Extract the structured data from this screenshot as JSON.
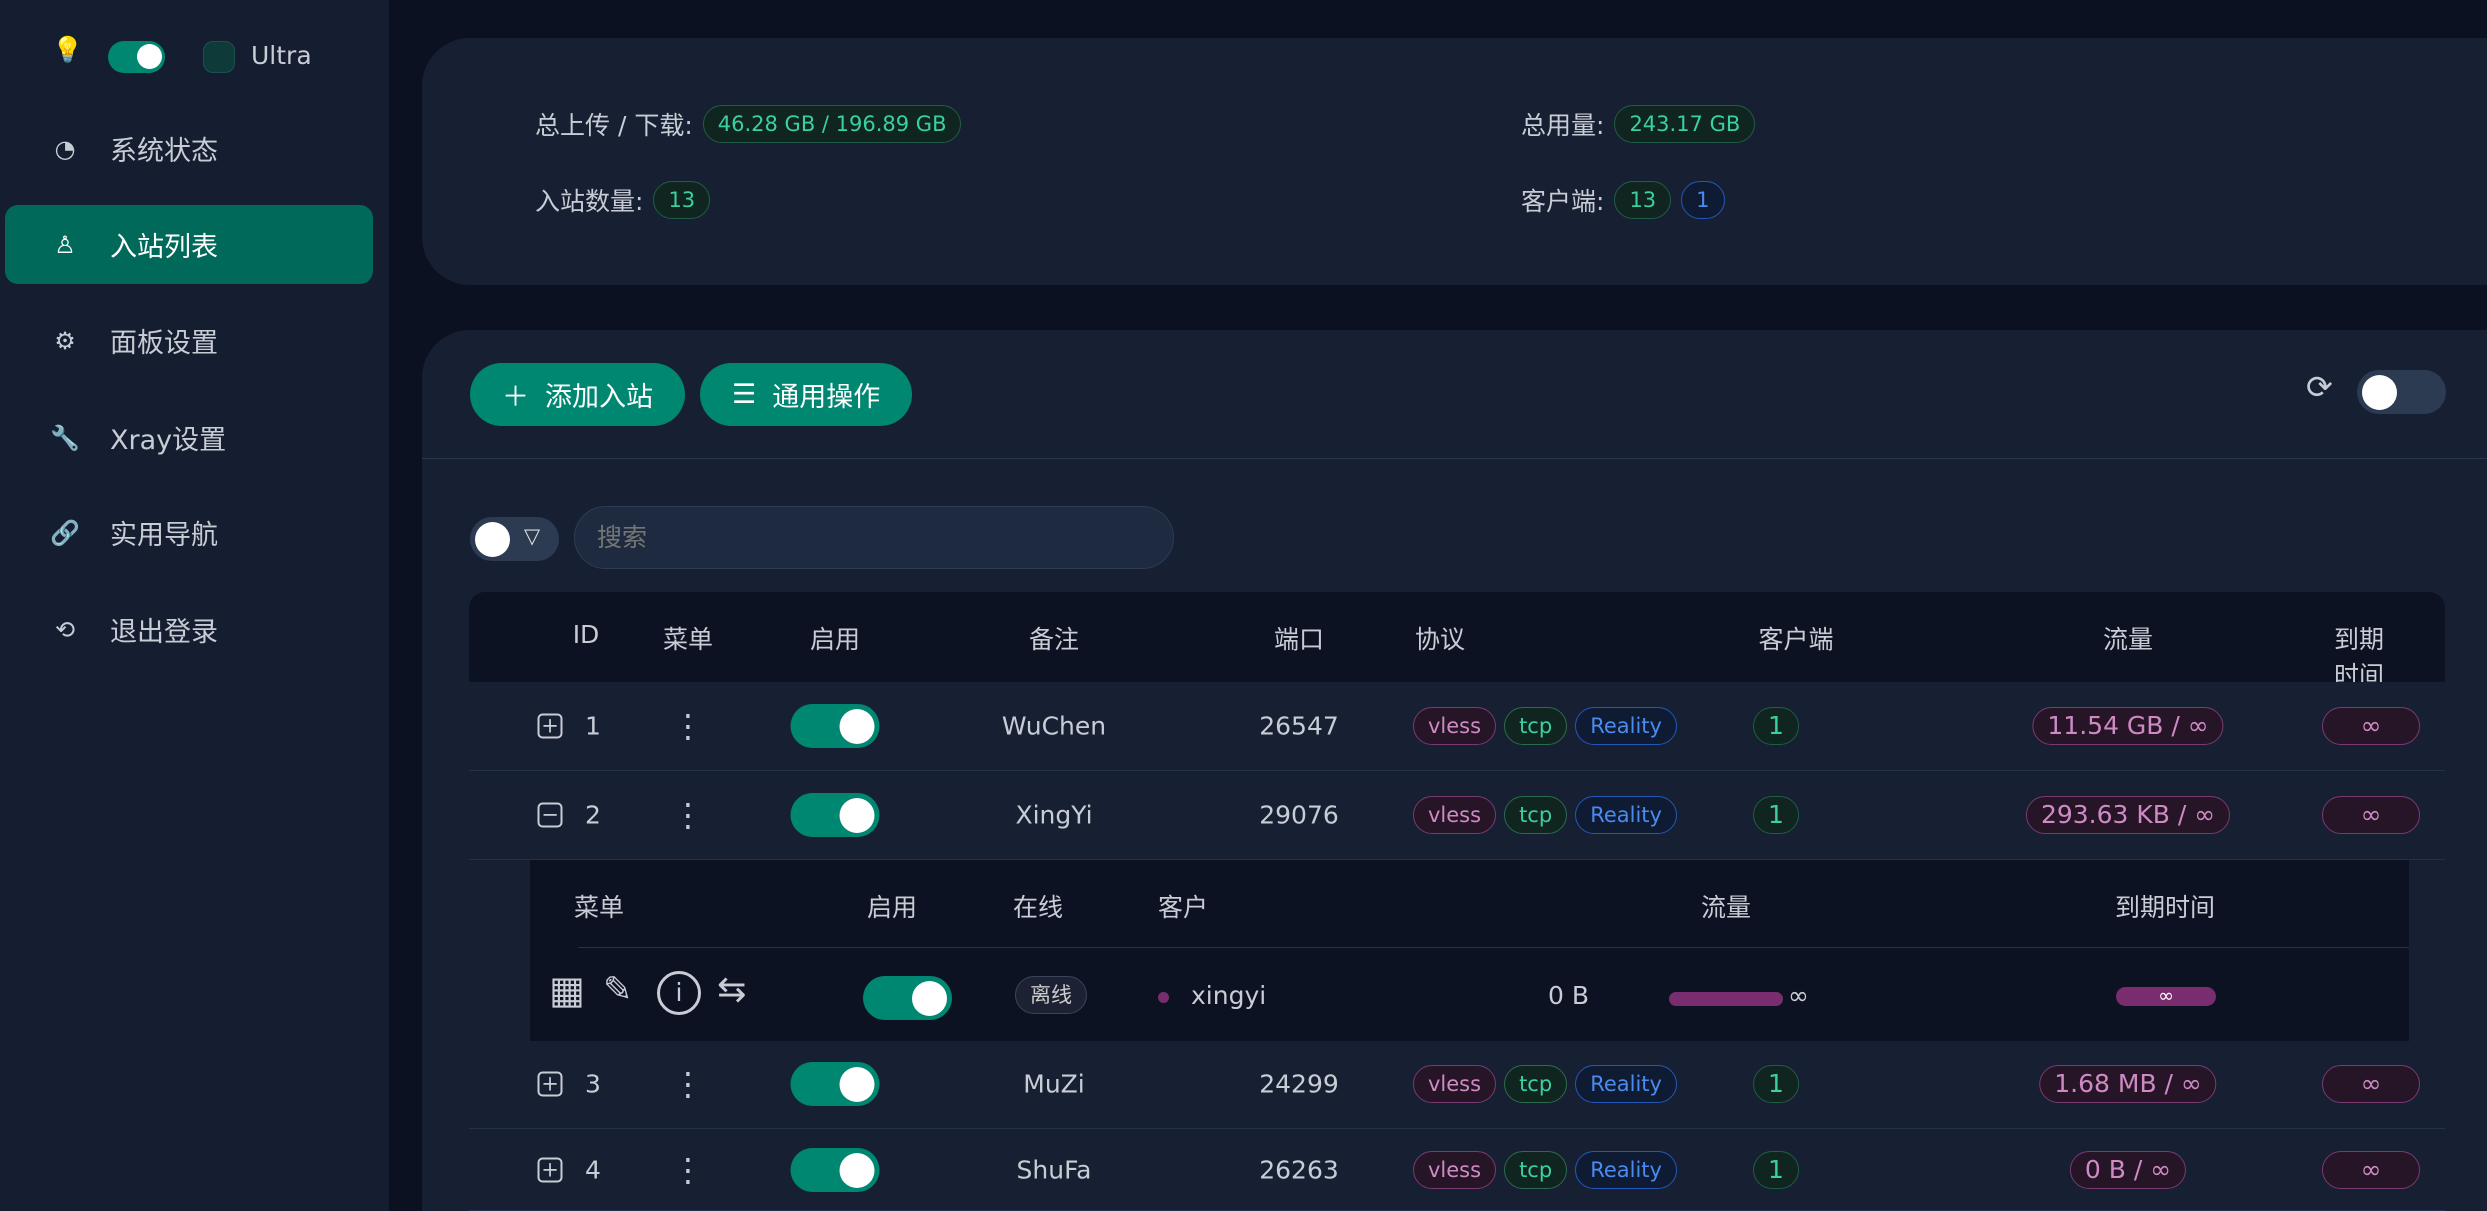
{
  "sidebar": {
    "theme_label": "Ultra",
    "items": [
      {
        "label": "系统状态",
        "icon": "dashboard-icon"
      },
      {
        "label": "入站列表",
        "icon": "user-icon",
        "active": true
      },
      {
        "label": "面板设置",
        "icon": "gear-icon"
      },
      {
        "label": "Xray设置",
        "icon": "wrench-icon"
      },
      {
        "label": "实用导航",
        "icon": "link-icon"
      },
      {
        "label": "退出登录",
        "icon": "logout-icon"
      }
    ]
  },
  "stats": {
    "traffic_label": "总上传 / 下载:",
    "traffic_value": "46.28 GB / 196.89 GB",
    "usage_label": "总用量:",
    "usage_value": "243.17 GB",
    "inbounds_label": "入站数量:",
    "inbounds_value": "13",
    "clients_label": "客户端:",
    "clients_value": "13",
    "clients_online": "1"
  },
  "toolbar": {
    "add_label": "添加入站",
    "general_label": "通用操作",
    "search_placeholder": "搜索"
  },
  "table": {
    "headers": [
      "ID",
      "菜单",
      "启用",
      "备注",
      "端口",
      "协议",
      "客户端",
      "流量",
      "到期时间"
    ],
    "rows": [
      {
        "id": "1",
        "remark": "WuChen",
        "port": "26547",
        "protocol": "vless",
        "network": "tcp",
        "security": "Reality",
        "clients": "1",
        "traffic": "11.54 GB / ∞",
        "expiry": "∞",
        "expanded": false
      },
      {
        "id": "2",
        "remark": "XingYi",
        "port": "29076",
        "protocol": "vless",
        "network": "tcp",
        "security": "Reality",
        "clients": "1",
        "traffic": "293.63 KB / ∞",
        "expiry": "∞",
        "expanded": true
      },
      {
        "id": "3",
        "remark": "MuZi",
        "port": "24299",
        "protocol": "vless",
        "network": "tcp",
        "security": "Reality",
        "clients": "1",
        "traffic": "1.68 MB / ∞",
        "expiry": "∞",
        "expanded": false
      },
      {
        "id": "4",
        "remark": "ShuFa",
        "port": "26263",
        "protocol": "vless",
        "network": "tcp",
        "security": "Reality",
        "clients": "1",
        "traffic": "0 B / ∞",
        "expiry": "∞",
        "expanded": false
      }
    ]
  },
  "client_table": {
    "headers": [
      "菜单",
      "启用",
      "在线",
      "客户",
      "流量",
      "到期时间"
    ],
    "row": {
      "online": "离线",
      "email": "xingyi",
      "traffic": "0 B",
      "traffic_limit": "∞",
      "expiry": "∞"
    }
  },
  "colors": {
    "accent": "#008771",
    "purple": "#7a2d6e"
  }
}
